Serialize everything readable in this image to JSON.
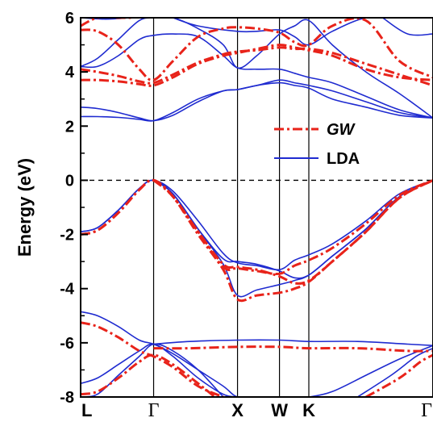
{
  "chart_data": {
    "type": "line",
    "title": "",
    "xlabel": "",
    "ylabel": "Energy (eV)",
    "ylim": [
      -8,
      6
    ],
    "y_ticks": [
      "-8",
      "-6",
      "-4",
      "-2",
      "0",
      "2",
      "4",
      "6"
    ],
    "y_tick_values": [
      -8,
      -6,
      -4,
      -2,
      0,
      2,
      4,
      6
    ],
    "x_range": [
      0,
      4.2
    ],
    "kpoints": [
      {
        "label": "L",
        "x": 0
      },
      {
        "label": "Γ",
        "x": 0.87
      },
      {
        "label": "X",
        "x": 1.87
      },
      {
        "label": "W",
        "x": 2.37
      },
      {
        "label": "K",
        "x": 2.72
      },
      {
        "label": "Γ",
        "x": 4.2
      }
    ],
    "fermi_level": 0,
    "legend": {
      "position": "top-right",
      "entries": [
        {
          "label": "GW",
          "style": "dash-dot",
          "color": "#e8231a"
        },
        {
          "label": "LDA",
          "style": "solid",
          "color": "#1f2bd0"
        }
      ]
    },
    "colors": {
      "gw": "#e8231a",
      "lda": "#1f2bd0"
    },
    "series": [
      {
        "name": "LDA",
        "x": [
          0,
          0.2,
          0.45,
          0.7,
          0.87,
          1.1,
          1.4,
          1.7,
          1.87,
          2.1,
          2.37,
          2.55,
          2.72,
          3.0,
          3.4,
          3.8,
          4.2
        ],
        "y": [
          -1.9,
          -1.75,
          -1.1,
          -0.3,
          0,
          -0.4,
          -1.5,
          -2.7,
          -3.05,
          -3.15,
          -3.3,
          -2.95,
          -2.75,
          -2.35,
          -1.5,
          -0.5,
          0
        ]
      },
      {
        "name": "LDA",
        "x": [
          0,
          0.2,
          0.45,
          0.7,
          0.87,
          1.1,
          1.4,
          1.7,
          1.87,
          2.1,
          2.37,
          2.55,
          2.72,
          3.0,
          3.4,
          3.8,
          4.2
        ],
        "y": [
          -1.9,
          -1.75,
          -1.1,
          -0.3,
          0,
          -0.5,
          -1.8,
          -3.1,
          -4.25,
          -4.05,
          -3.85,
          -3.7,
          -3.5,
          -2.8,
          -1.8,
          -0.6,
          0
        ]
      },
      {
        "name": "LDA",
        "x": [
          0.87,
          1.1,
          1.4,
          1.7,
          1.87,
          2.1,
          2.37,
          2.55,
          2.72,
          3.0,
          3.4,
          3.8,
          4.2
        ],
        "y": [
          0,
          -0.5,
          -1.8,
          -2.9,
          -3.0,
          -3.1,
          -3.35,
          -3.6,
          -3.5,
          -2.8,
          -1.8,
          -0.6,
          0
        ]
      },
      {
        "name": "LDA",
        "x": [
          0,
          0.2,
          0.45,
          0.7,
          0.87,
          1.1,
          1.4,
          1.7,
          1.87,
          2.1,
          2.37,
          2.55,
          2.72,
          3.0,
          3.4,
          3.8,
          4.2
        ],
        "y": [
          -4.85,
          -5.0,
          -5.4,
          -5.9,
          -6.05,
          -6.4,
          -7.0,
          -7.6,
          -8.0,
          -8.0,
          -8.0,
          -8.0,
          -8.0,
          -7.8,
          -7.2,
          -6.6,
          -6.1
        ]
      },
      {
        "name": "LDA",
        "x": [
          0,
          0.2,
          0.45,
          0.7,
          0.87,
          1.1,
          1.4,
          1.7,
          1.87
        ],
        "y": [
          -7.5,
          -7.3,
          -6.8,
          -6.3,
          -6.05,
          -6.5,
          -7.3,
          -7.9,
          -8.0
        ]
      },
      {
        "name": "LDA",
        "x": [
          0,
          0.2,
          0.45,
          0.7,
          0.87,
          1.1,
          1.4,
          1.7
        ],
        "y": [
          -8.0,
          -7.9,
          -7.2,
          -6.5,
          -6.05,
          -6.3,
          -7.0,
          -8.0
        ]
      },
      {
        "name": "LDA",
        "x": [
          0.87,
          1.3,
          1.87,
          2.37,
          2.72,
          3.3,
          3.9,
          4.2
        ],
        "y": [
          -6.05,
          -5.95,
          -5.9,
          -5.9,
          -5.95,
          -5.95,
          -6.05,
          -6.1
        ]
      },
      {
        "name": "LDA",
        "x": [
          3.3,
          3.7,
          4.0,
          4.2
        ],
        "y": [
          -8.0,
          -7.2,
          -6.5,
          -6.2
        ]
      },
      {
        "name": "LDA",
        "x": [
          0,
          0.2,
          0.45,
          0.7,
          0.87,
          1.1,
          1.4,
          1.7,
          1.87,
          2.1,
          2.37,
          2.55,
          2.72,
          3.0,
          3.4,
          3.8,
          4.2
        ],
        "y": [
          2.35,
          2.35,
          2.32,
          2.25,
          2.2,
          2.5,
          3.0,
          3.3,
          3.35,
          3.5,
          3.7,
          3.6,
          3.5,
          3.3,
          2.9,
          2.5,
          2.3
        ]
      },
      {
        "name": "LDA",
        "x": [
          0,
          0.2,
          0.45,
          0.7,
          0.87,
          1.1,
          1.4,
          1.7,
          1.87,
          2.1,
          2.37,
          2.55,
          2.72,
          3.0,
          3.4,
          3.8,
          4.2
        ],
        "y": [
          2.7,
          2.65,
          2.5,
          2.3,
          2.2,
          2.4,
          2.9,
          3.3,
          3.35,
          3.5,
          3.6,
          3.5,
          3.4,
          3.0,
          2.7,
          2.4,
          2.3
        ]
      },
      {
        "name": "LDA",
        "x": [
          0,
          0.2,
          0.45,
          0.7,
          0.87,
          1.1,
          1.4,
          1.7,
          1.87,
          2.1,
          2.37,
          2.55,
          2.72,
          3.0,
          3.4,
          3.8,
          4.2
        ],
        "y": [
          4.2,
          4.2,
          4.6,
          5.2,
          5.35,
          5.4,
          5.3,
          4.6,
          4.15,
          4.1,
          4.1,
          3.95,
          3.8,
          3.6,
          3.1,
          2.6,
          2.3
        ]
      },
      {
        "name": "LDA",
        "x": [
          0,
          0.2,
          0.45,
          0.7,
          0.87,
          1.1,
          1.4,
          1.7,
          1.87,
          2.1,
          2.37,
          2.55,
          2.72,
          3.0,
          3.4,
          3.8,
          4.2
        ],
        "y": [
          4.2,
          4.5,
          5.2,
          5.9,
          6.0,
          6.0,
          5.6,
          5.0,
          4.15,
          4.6,
          5.4,
          5.7,
          5.9,
          5.0,
          4.0,
          3.2,
          2.3
        ]
      },
      {
        "name": "LDA",
        "x": [
          1.1,
          1.4,
          1.87,
          2.1,
          2.37,
          2.55,
          2.72,
          3.0,
          3.4,
          3.8,
          4.2
        ],
        "y": [
          6.0,
          5.7,
          5.5,
          5.5,
          5.55,
          5.3,
          5.0,
          5.5,
          6.0,
          6.0,
          6.0
        ]
      },
      {
        "name": "LDA",
        "x": [
          3.6,
          3.9,
          4.2
        ],
        "y": [
          6.0,
          5.4,
          5.4
        ]
      },
      {
        "name": "LDA",
        "x": [
          0,
          0.3,
          0.6
        ],
        "y": [
          6.0,
          5.95,
          6.0
        ]
      },
      {
        "name": "GW",
        "x": [
          0,
          0.2,
          0.45,
          0.7,
          0.87,
          1.1,
          1.4,
          1.7,
          1.87,
          2.1,
          2.37,
          2.55,
          2.72,
          3.0,
          3.4,
          3.8,
          4.2
        ],
        "y": [
          -2.0,
          -1.85,
          -1.2,
          -0.35,
          0,
          -0.6,
          -1.9,
          -3.2,
          -3.25,
          -3.35,
          -3.45,
          -3.15,
          -2.95,
          -2.5,
          -1.6,
          -0.55,
          0
        ]
      },
      {
        "name": "GW",
        "x": [
          0,
          0.2,
          0.45,
          0.7,
          0.87,
          1.1,
          1.4,
          1.7,
          1.87,
          2.1,
          2.37,
          2.55,
          2.72,
          3.0,
          3.4,
          3.8,
          4.2
        ],
        "y": [
          -2.0,
          -1.85,
          -1.2,
          -0.35,
          0,
          -0.6,
          -2.0,
          -3.3,
          -4.4,
          -4.25,
          -4.15,
          -4.0,
          -3.75,
          -3.0,
          -1.9,
          -0.65,
          0
        ]
      },
      {
        "name": "GW",
        "x": [
          0.87,
          1.1,
          1.4,
          1.7,
          1.87,
          2.1,
          2.37,
          2.55,
          2.72,
          3.0,
          3.4,
          3.8,
          4.2
        ],
        "y": [
          0,
          -0.6,
          -1.9,
          -3.1,
          -3.2,
          -3.3,
          -3.55,
          -3.8,
          -3.7,
          -3.0,
          -1.9,
          -0.65,
          0
        ]
      },
      {
        "name": "GW",
        "x": [
          0,
          0.2,
          0.45,
          0.7,
          0.87,
          1.1,
          1.4,
          1.7
        ],
        "y": [
          -5.25,
          -5.4,
          -5.8,
          -6.3,
          -6.5,
          -6.9,
          -7.6,
          -8.0
        ]
      },
      {
        "name": "GW",
        "x": [
          0,
          0.2,
          0.45,
          0.7,
          0.87,
          1.1,
          1.4,
          1.6
        ],
        "y": [
          -7.9,
          -7.8,
          -7.3,
          -6.7,
          -6.45,
          -6.8,
          -7.5,
          -8.0
        ]
      },
      {
        "name": "GW",
        "x": [
          0.87,
          1.3,
          1.87,
          2.37,
          2.72,
          3.3,
          3.9,
          4.2
        ],
        "y": [
          -6.2,
          -6.2,
          -6.15,
          -6.15,
          -6.2,
          -6.2,
          -6.3,
          -6.3
        ]
      },
      {
        "name": "GW",
        "x": [
          3.4,
          3.8,
          4.05,
          4.2
        ],
        "y": [
          -8.0,
          -7.3,
          -6.7,
          -6.45
        ]
      },
      {
        "name": "GW",
        "x": [
          0,
          0.2,
          0.45,
          0.7,
          0.87,
          1.1,
          1.4,
          1.7,
          1.87,
          2.1,
          2.37,
          2.55,
          2.72,
          3.0,
          3.4,
          3.8,
          4.2
        ],
        "y": [
          3.7,
          3.7,
          3.65,
          3.55,
          3.5,
          3.8,
          4.3,
          4.6,
          4.7,
          4.85,
          5.0,
          4.9,
          4.8,
          4.6,
          4.1,
          3.8,
          3.7
        ]
      },
      {
        "name": "GW",
        "x": [
          0,
          0.2,
          0.45,
          0.7,
          0.87,
          1.1,
          1.4,
          1.7,
          1.87,
          2.1,
          2.37,
          2.55,
          2.72,
          3.0,
          3.4,
          3.8,
          4.2
        ],
        "y": [
          4.1,
          4.0,
          3.85,
          3.65,
          3.6,
          3.9,
          4.35,
          4.65,
          4.75,
          4.8,
          4.9,
          4.85,
          4.85,
          4.7,
          4.3,
          3.9,
          3.5
        ]
      },
      {
        "name": "GW",
        "x": [
          0,
          0.2,
          0.45,
          0.7,
          0.87,
          1.1,
          1.4,
          1.7,
          1.87,
          2.1,
          2.37,
          2.55,
          2.72,
          3.0,
          3.4,
          3.8,
          4.2
        ],
        "y": [
          5.55,
          5.5,
          5.0,
          4.1,
          3.7,
          4.4,
          5.3,
          5.6,
          5.65,
          5.6,
          5.45,
          5.1,
          5.0,
          5.7,
          5.9,
          4.4,
          3.8
        ]
      },
      {
        "name": "GW",
        "x": [
          0,
          0.2,
          0.45,
          0.6
        ],
        "y": [
          5.7,
          6.0,
          6.0,
          6.0
        ]
      }
    ]
  }
}
